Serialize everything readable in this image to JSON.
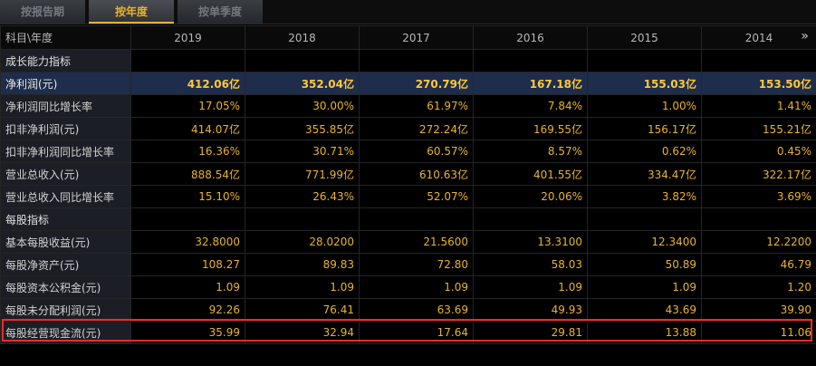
{
  "tabs": [
    "按报告期",
    "按年度",
    "按单季度"
  ],
  "header": {
    "label": "科目\\年度",
    "years": [
      "2019",
      "2018",
      "2017",
      "2016",
      "2015",
      "2014"
    ],
    "more": "»"
  },
  "rows": [
    {
      "type": "section",
      "label": "成长能力指标"
    },
    {
      "type": "highlight",
      "label": "净利润(元)",
      "values": [
        "412.06亿",
        "352.04亿",
        "270.79亿",
        "167.18亿",
        "155.03亿",
        "153.50亿"
      ]
    },
    {
      "type": "data",
      "label": "净利润同比增长率",
      "values": [
        "17.05%",
        "30.00%",
        "61.97%",
        "7.84%",
        "1.00%",
        "1.41%"
      ]
    },
    {
      "type": "data",
      "label": "扣非净利润(元)",
      "values": [
        "414.07亿",
        "355.85亿",
        "272.24亿",
        "169.55亿",
        "156.17亿",
        "155.21亿"
      ]
    },
    {
      "type": "data",
      "label": "扣非净利润同比增长率",
      "values": [
        "16.36%",
        "30.71%",
        "60.57%",
        "8.57%",
        "0.62%",
        "0.45%"
      ]
    },
    {
      "type": "data",
      "label": "营业总收入(元)",
      "values": [
        "888.54亿",
        "771.99亿",
        "610.63亿",
        "401.55亿",
        "334.47亿",
        "322.17亿"
      ]
    },
    {
      "type": "data",
      "label": "营业总收入同比增长率",
      "values": [
        "15.10%",
        "26.43%",
        "52.07%",
        "20.06%",
        "3.82%",
        "3.69%"
      ]
    },
    {
      "type": "section",
      "label": "每股指标"
    },
    {
      "type": "data",
      "label": "基本每股收益(元)",
      "values": [
        "32.8000",
        "28.0200",
        "21.5600",
        "13.3100",
        "12.3400",
        "12.2200"
      ]
    },
    {
      "type": "data",
      "label": "每股净资产(元)",
      "values": [
        "108.27",
        "89.83",
        "72.80",
        "58.03",
        "50.89",
        "46.79"
      ]
    },
    {
      "type": "data",
      "label": "每股资本公积金(元)",
      "values": [
        "1.09",
        "1.09",
        "1.09",
        "1.09",
        "1.09",
        "1.20"
      ]
    },
    {
      "type": "data",
      "label": "每股未分配利润(元)",
      "values": [
        "92.26",
        "76.41",
        "63.69",
        "49.93",
        "43.69",
        "39.90"
      ]
    },
    {
      "type": "data",
      "label": "每股经营现金流(元)",
      "values": [
        "35.99",
        "32.94",
        "17.64",
        "29.81",
        "13.88",
        "11.06"
      ]
    }
  ],
  "colors": {
    "accent": "#e9b32b",
    "highlight_row": "#1e2d4c",
    "red_box": "#ec2b2b"
  }
}
